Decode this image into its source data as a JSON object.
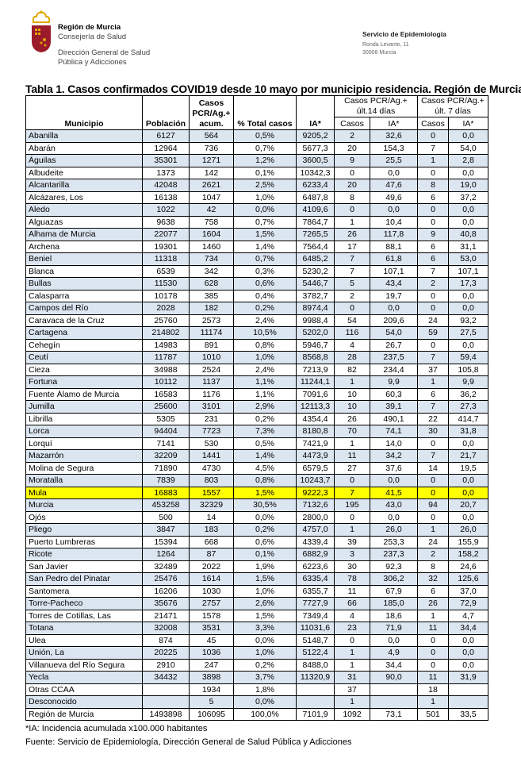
{
  "header": {
    "org_name": "Región de Murcia",
    "org_dept": "Consejería de Salud",
    "org_direction_line1": "Dirección General de Salud",
    "org_direction_line2": "Pública y Adicciones",
    "service_name": "Servicio de Epidemiología",
    "service_address1": "Ronda Levante, 11",
    "service_address2": "30008 Murcia"
  },
  "title": "Tabla 1. Casos confirmados COVID19 desde 10 mayo por municipio residencia. Región de Murcia",
  "table": {
    "headers": {
      "municipio": "Municipio",
      "poblacion": "Población",
      "casos_acum": "Casos PCR/Ag.+ acum.",
      "pct": "% Total casos",
      "ia": "IA*",
      "group14": "Casos PCR/Ag.+ últ.14 días",
      "group7": "Casos PCR/Ag.+ últ. 7 días",
      "casos": "Casos",
      "ia_sub": "IA*"
    },
    "rows": [
      [
        "Abanilla",
        "6127",
        "564",
        "0,5%",
        "9205,2",
        "2",
        "32,6",
        "0",
        "0,0"
      ],
      [
        "Abarán",
        "12964",
        "736",
        "0,7%",
        "5677,3",
        "20",
        "154,3",
        "7",
        "54,0"
      ],
      [
        "Águilas",
        "35301",
        "1271",
        "1,2%",
        "3600,5",
        "9",
        "25,5",
        "1",
        "2,8"
      ],
      [
        "Albudeite",
        "1373",
        "142",
        "0,1%",
        "10342,3",
        "0",
        "0,0",
        "0",
        "0,0"
      ],
      [
        "Alcantarilla",
        "42048",
        "2621",
        "2,5%",
        "6233,4",
        "20",
        "47,6",
        "8",
        "19,0"
      ],
      [
        "Alcázares, Los",
        "16138",
        "1047",
        "1,0%",
        "6487,8",
        "8",
        "49,6",
        "6",
        "37,2"
      ],
      [
        "Aledo",
        "1022",
        "42",
        "0,0%",
        "4109,6",
        "0",
        "0,0",
        "0",
        "0,0"
      ],
      [
        "Alguazas",
        "9638",
        "758",
        "0,7%",
        "7864,7",
        "1",
        "10,4",
        "0",
        "0,0"
      ],
      [
        "Alhama de Murcia",
        "22077",
        "1604",
        "1,5%",
        "7265,5",
        "26",
        "117,8",
        "9",
        "40,8"
      ],
      [
        "Archena",
        "19301",
        "1460",
        "1,4%",
        "7564,4",
        "17",
        "88,1",
        "6",
        "31,1"
      ],
      [
        "Beniel",
        "11318",
        "734",
        "0,7%",
        "6485,2",
        "7",
        "61,8",
        "6",
        "53,0"
      ],
      [
        "Blanca",
        "6539",
        "342",
        "0,3%",
        "5230,2",
        "7",
        "107,1",
        "7",
        "107,1"
      ],
      [
        "Bullas",
        "11530",
        "628",
        "0,6%",
        "5446,7",
        "5",
        "43,4",
        "2",
        "17,3"
      ],
      [
        "Calasparra",
        "10178",
        "385",
        "0,4%",
        "3782,7",
        "2",
        "19,7",
        "0",
        "0,0"
      ],
      [
        "Campos del Río",
        "2028",
        "182",
        "0,2%",
        "8974,4",
        "0",
        "0,0",
        "0",
        "0,0"
      ],
      [
        "Caravaca de la Cruz",
        "25760",
        "2573",
        "2,4%",
        "9988,4",
        "54",
        "209,6",
        "24",
        "93,2"
      ],
      [
        "Cartagena",
        "214802",
        "11174",
        "10,5%",
        "5202,0",
        "116",
        "54,0",
        "59",
        "27,5"
      ],
      [
        "Cehegín",
        "14983",
        "891",
        "0,8%",
        "5946,7",
        "4",
        "26,7",
        "0",
        "0,0"
      ],
      [
        "Ceutí",
        "11787",
        "1010",
        "1,0%",
        "8568,8",
        "28",
        "237,5",
        "7",
        "59,4"
      ],
      [
        "Cieza",
        "34988",
        "2524",
        "2,4%",
        "7213,9",
        "82",
        "234,4",
        "37",
        "105,8"
      ],
      [
        "Fortuna",
        "10112",
        "1137",
        "1,1%",
        "11244,1",
        "1",
        "9,9",
        "1",
        "9,9"
      ],
      [
        "Fuente Álamo de Murcia",
        "16583",
        "1176",
        "1,1%",
        "7091,6",
        "10",
        "60,3",
        "6",
        "36,2"
      ],
      [
        "Jumilla",
        "25600",
        "3101",
        "2,9%",
        "12113,3",
        "10",
        "39,1",
        "7",
        "27,3"
      ],
      [
        "Librilla",
        "5305",
        "231",
        "0,2%",
        "4354,4",
        "26",
        "490,1",
        "22",
        "414,7"
      ],
      [
        "Lorca",
        "94404",
        "7723",
        "7,3%",
        "8180,8",
        "70",
        "74,1",
        "30",
        "31,8"
      ],
      [
        "Lorquí",
        "7141",
        "530",
        "0,5%",
        "7421,9",
        "1",
        "14,0",
        "0",
        "0,0"
      ],
      [
        "Mazarrón",
        "32209",
        "1441",
        "1,4%",
        "4473,9",
        "11",
        "34,2",
        "7",
        "21,7"
      ],
      [
        "Molina de Segura",
        "71890",
        "4730",
        "4,5%",
        "6579,5",
        "27",
        "37,6",
        "14",
        "19,5"
      ],
      [
        "Moratalla",
        "7839",
        "803",
        "0,8%",
        "10243,7",
        "0",
        "0,0",
        "0",
        "0,0"
      ],
      [
        "Mula",
        "16883",
        "1557",
        "1,5%",
        "9222,3",
        "7",
        "41,5",
        "0",
        "0,0"
      ],
      [
        "Murcia",
        "453258",
        "32329",
        "30,5%",
        "7132,6",
        "195",
        "43,0",
        "94",
        "20,7"
      ],
      [
        "Ojós",
        "500",
        "14",
        "0,0%",
        "2800,0",
        "0",
        "0,0",
        "0",
        "0,0"
      ],
      [
        "Pliego",
        "3847",
        "183",
        "0,2%",
        "4757,0",
        "1",
        "26,0",
        "1",
        "26,0"
      ],
      [
        "Puerto Lumbreras",
        "15394",
        "668",
        "0,6%",
        "4339,4",
        "39",
        "253,3",
        "24",
        "155,9"
      ],
      [
        "Ricote",
        "1264",
        "87",
        "0,1%",
        "6882,9",
        "3",
        "237,3",
        "2",
        "158,2"
      ],
      [
        "San Javier",
        "32489",
        "2022",
        "1,9%",
        "6223,6",
        "30",
        "92,3",
        "8",
        "24,6"
      ],
      [
        "San Pedro del Pinatar",
        "25476",
        "1614",
        "1,5%",
        "6335,4",
        "78",
        "306,2",
        "32",
        "125,6"
      ],
      [
        "Santomera",
        "16206",
        "1030",
        "1,0%",
        "6355,7",
        "11",
        "67,9",
        "6",
        "37,0"
      ],
      [
        "Torre-Pacheco",
        "35676",
        "2757",
        "2,6%",
        "7727,9",
        "66",
        "185,0",
        "26",
        "72,9"
      ],
      [
        "Torres de Cotillas, Las",
        "21471",
        "1578",
        "1,5%",
        "7349,4",
        "4",
        "18,6",
        "1",
        "4,7"
      ],
      [
        "Totana",
        "32008",
        "3531",
        "3,3%",
        "11031,6",
        "23",
        "71,9",
        "11",
        "34,4"
      ],
      [
        "Ulea",
        "874",
        "45",
        "0,0%",
        "5148,7",
        "0",
        "0,0",
        "0",
        "0,0"
      ],
      [
        "Unión, La",
        "20225",
        "1036",
        "1,0%",
        "5122,4",
        "1",
        "4,9",
        "0",
        "0,0"
      ],
      [
        "Villanueva del Río Segura",
        "2910",
        "247",
        "0,2%",
        "8488,0",
        "1",
        "34,4",
        "0",
        "0,0"
      ],
      [
        "Yecla",
        "34432",
        "3898",
        "3,7%",
        "11320,9",
        "31",
        "90,0",
        "11",
        "31,9"
      ],
      [
        "Otras CCAA",
        "",
        "1934",
        "1,8%",
        "",
        "37",
        "",
        "18",
        ""
      ],
      [
        "Desconocido",
        "",
        "5",
        "0,0%",
        "",
        "1",
        "",
        "1",
        ""
      ],
      [
        "Región de Murcia",
        "1493898",
        "106095",
        "100,0%",
        "7101,9",
        "1092",
        "73,1",
        "501",
        "33,5"
      ]
    ],
    "highlighted_row": "Mula",
    "highlight_color": "#ffff00",
    "stripe_color": "#dce6f1"
  },
  "notes": {
    "footnote": "*IA: Incidencia acumulada x100.000 habitantes",
    "source": "Fuente: Servicio de Epidemiología, Dirección General de Salud Pública y Adicciones"
  }
}
